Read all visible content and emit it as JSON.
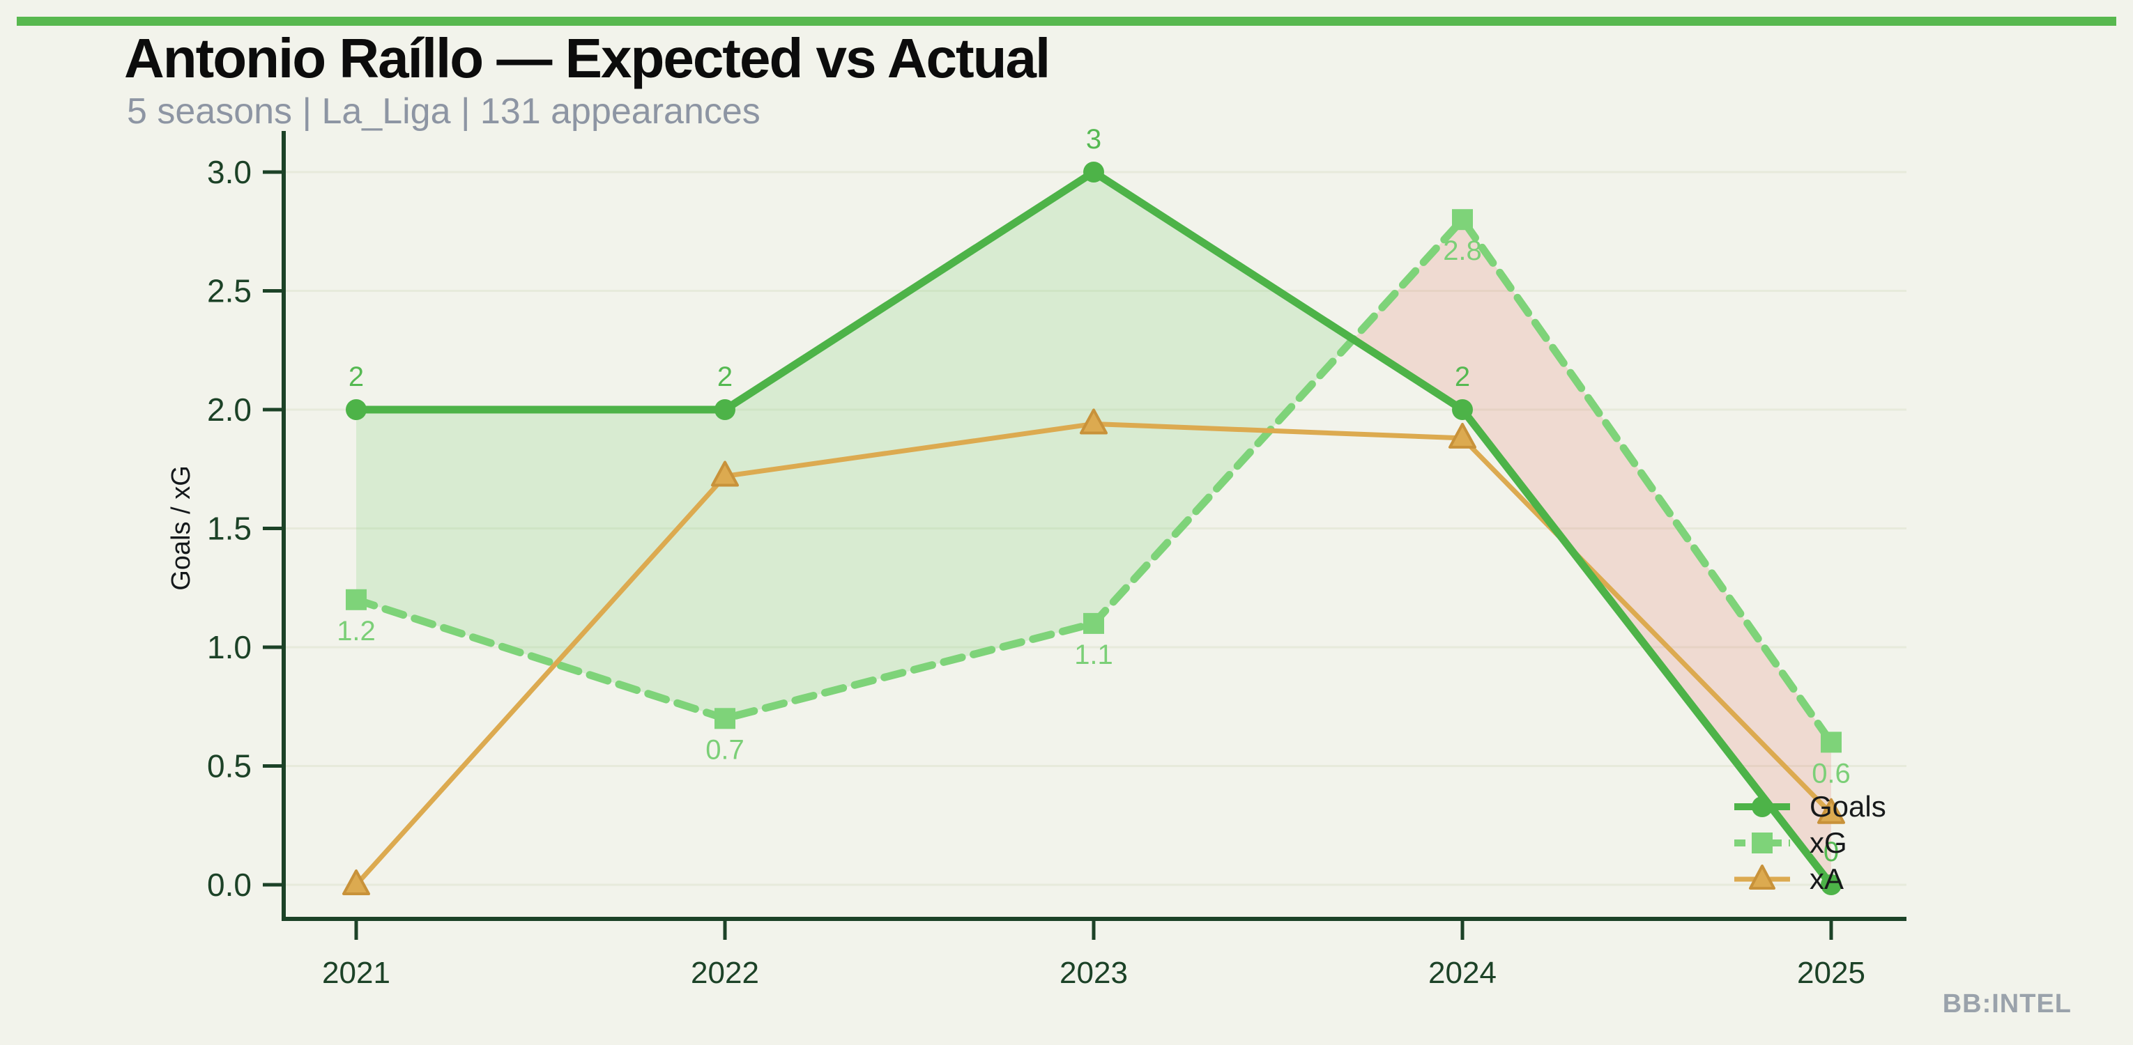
{
  "header": {
    "title": "Antonio Raíllo — Expected vs Actual",
    "subtitle": "5 seasons | La_Liga | 131 appearances"
  },
  "watermark": "BB:INTEL",
  "colors": {
    "bg": "#f2f3eb",
    "accent": "#58b84f",
    "dark": "#1c4227",
    "subtitle": "#8d95a3",
    "watermark": "#9aa2ab",
    "grid": "#e7eadb",
    "fill_pos": "rgba(121,208,117,0.22)",
    "fill_neg": "rgba(226,106,96,0.18)",
    "triangle_edge": "#c8923a"
  },
  "chart_data": {
    "type": "line",
    "x": [
      2021,
      2022,
      2023,
      2024,
      2025
    ],
    "series": [
      {
        "name": "Goals",
        "values": [
          2,
          2,
          3,
          2,
          0
        ],
        "labels": [
          "2",
          "2",
          "3",
          "2",
          "0"
        ],
        "color": "#4db348",
        "label_color": "#55b952",
        "style": "solid",
        "marker": "circle"
      },
      {
        "name": "xG",
        "values": [
          1.2,
          0.7,
          1.1,
          2.8,
          0.6
        ],
        "labels": [
          "1.2",
          "0.7",
          "1.1",
          "2.8",
          "0.6"
        ],
        "color": "#7ed379",
        "label_color": "#7bcf77",
        "style": "dashed",
        "marker": "square"
      },
      {
        "name": "xA",
        "values": [
          0.0,
          1.72,
          1.94,
          1.88,
          0.3
        ],
        "labels": [],
        "color": "#dcaa50",
        "label_color": "#dcaa50",
        "style": "solid",
        "marker": "triangle"
      }
    ],
    "ylabel": "Goals / xG",
    "xlabel": "",
    "yticks": [
      "0.0",
      "0.5",
      "1.0",
      "1.5",
      "2.0",
      "2.5",
      "3.0"
    ],
    "ylim": [
      0,
      3
    ],
    "grid": "horizontal-faint",
    "legend_position": "lower-right",
    "fill_between": "Goals vs xG (green where Goals > xG, pink where xG > Goals)"
  }
}
